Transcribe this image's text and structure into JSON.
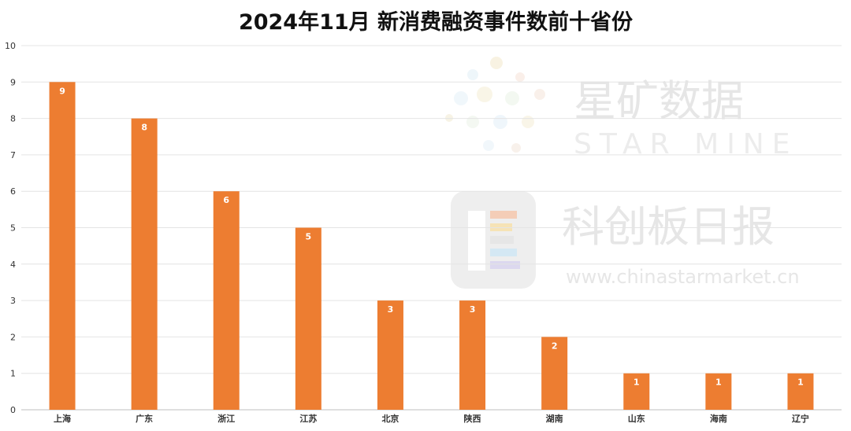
{
  "chart_data": {
    "type": "bar",
    "title": "2024年11月 新消费融资事件数前十省份",
    "categories": [
      "上海",
      "广东",
      "浙江",
      "江苏",
      "北京",
      "陕西",
      "湖南",
      "山东",
      "海南",
      "辽宁"
    ],
    "values": [
      9,
      8,
      6,
      5,
      3,
      3,
      2,
      1,
      1,
      1
    ],
    "ylim": [
      0,
      10
    ],
    "yticks": [
      0,
      1,
      2,
      3,
      4,
      5,
      6,
      7,
      8,
      9,
      10
    ],
    "grid": true,
    "legend": "none",
    "bar_color": "#ED7D31",
    "data_labels": true
  },
  "watermark": {
    "logo_text_cn": "星矿数据",
    "logo_text_en": "STAR MINE",
    "brand_cn": "科创板日报",
    "url": "www.chinastarmarket.cn"
  }
}
